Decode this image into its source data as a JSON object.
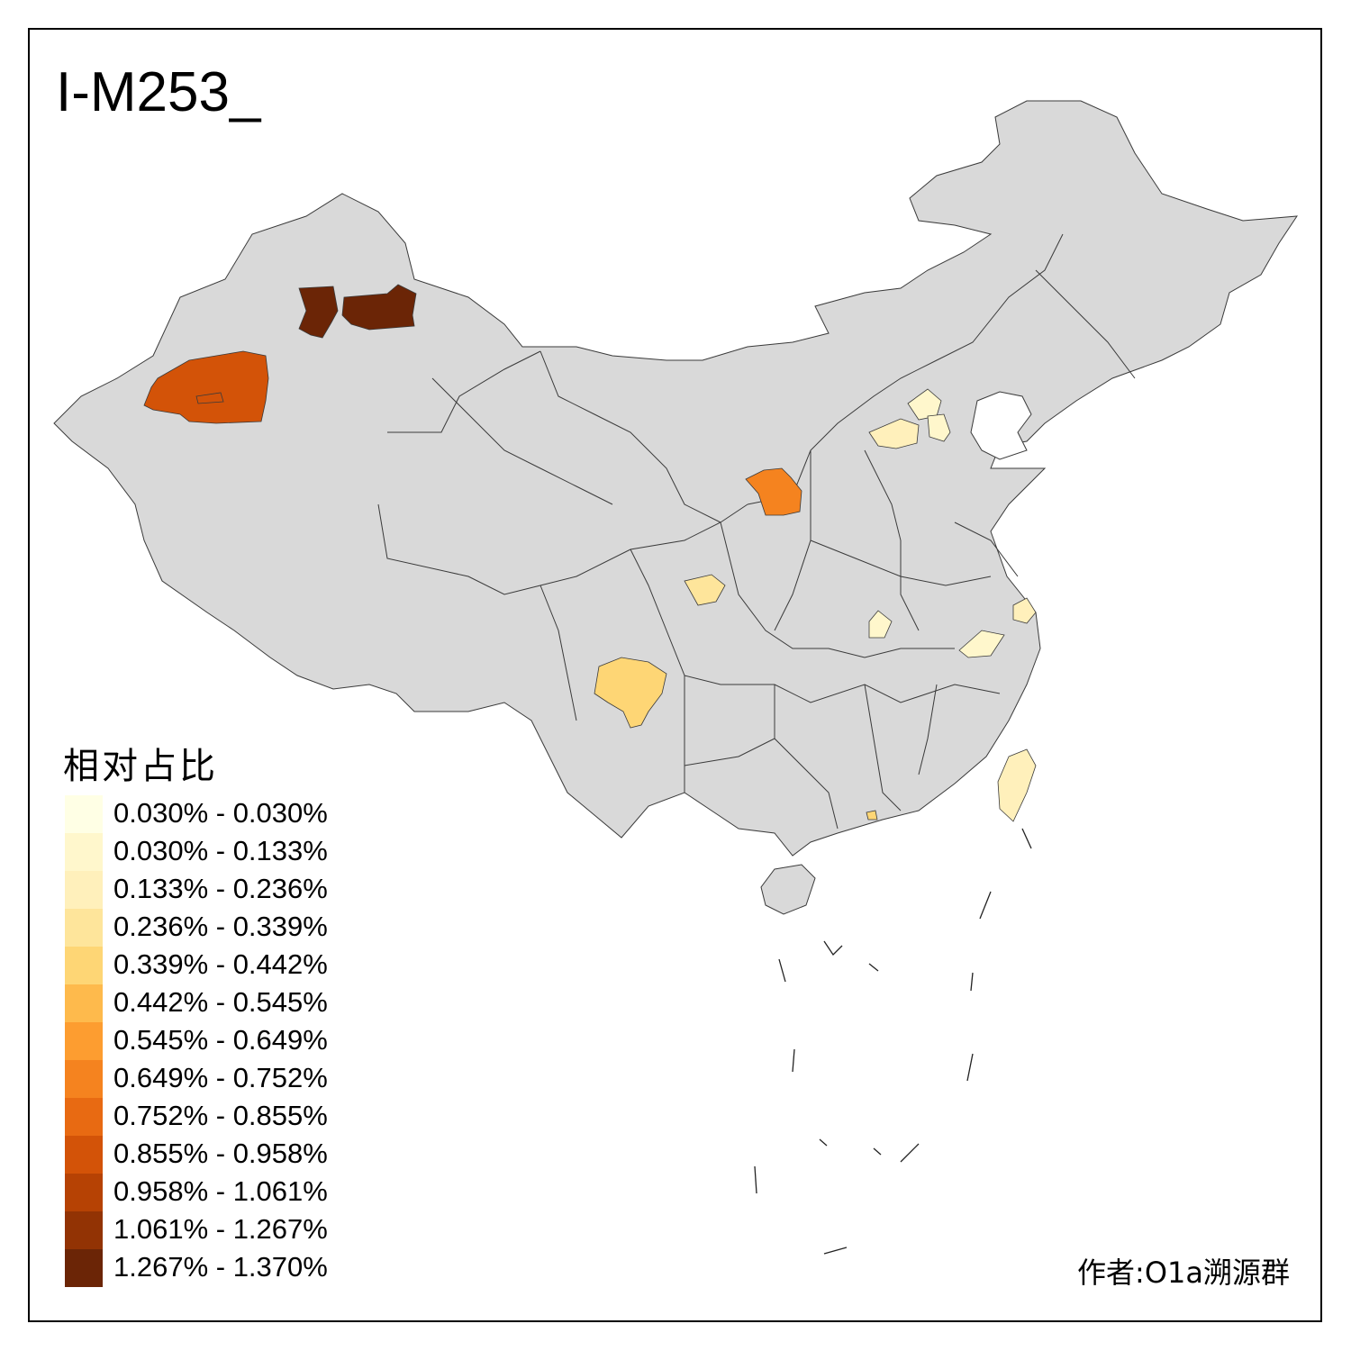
{
  "title": "I-M253_",
  "legend": {
    "title": "相对占比",
    "items": [
      {
        "label": "0.030% - 0.030%",
        "color": "#ffffe5"
      },
      {
        "label": "0.030% - 0.133%",
        "color": "#fff7cc"
      },
      {
        "label": "0.133% - 0.236%",
        "color": "#fff0bb"
      },
      {
        "label": "0.236% - 0.339%",
        "color": "#fee59b"
      },
      {
        "label": "0.339% - 0.442%",
        "color": "#fed675"
      },
      {
        "label": "0.442% - 0.545%",
        "color": "#feba4c"
      },
      {
        "label": "0.545% - 0.649%",
        "color": "#fd9d30"
      },
      {
        "label": "0.649% - 0.752%",
        "color": "#f5831f"
      },
      {
        "label": "0.752% - 0.855%",
        "color": "#e86a12"
      },
      {
        "label": "0.855% - 0.958%",
        "color": "#d35308"
      },
      {
        "label": "0.958% - 1.061%",
        "color": "#b64204"
      },
      {
        "label": "1.061% - 1.267%",
        "color": "#923304"
      },
      {
        "label": "1.267% - 1.370%",
        "color": "#6b2506"
      }
    ]
  },
  "base_color": "#d9d9d9",
  "highlighted_regions": [
    {
      "name": "xinjiang-kashgar-region",
      "bin": 9
    },
    {
      "name": "xinjiang-altay-west-region",
      "bin": 12
    },
    {
      "name": "xinjiang-altay-east-region",
      "bin": 12
    },
    {
      "name": "shanxi-region",
      "bin": 7
    },
    {
      "name": "sichuan-yunnan-region",
      "bin": 4
    },
    {
      "name": "chongqing-region",
      "bin": 3
    },
    {
      "name": "beijing-region",
      "bin": 1
    },
    {
      "name": "tianjin-region",
      "bin": 1
    },
    {
      "name": "hebei-region",
      "bin": 2
    },
    {
      "name": "henan-xinyang-region",
      "bin": 1
    },
    {
      "name": "anhui-region",
      "bin": 1
    },
    {
      "name": "shanghai-region",
      "bin": 2
    },
    {
      "name": "taiwan-region",
      "bin": 2
    },
    {
      "name": "hongkong-region",
      "bin": 4
    }
  ],
  "author": "作者:O1a溯源群"
}
